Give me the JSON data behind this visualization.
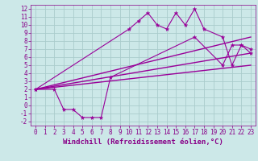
{
  "title": "",
  "xlabel": "Windchill (Refroidissement éolien,°C)",
  "ylabel": "",
  "xlim": [
    -0.5,
    23.5
  ],
  "ylim": [
    -2.5,
    12.5
  ],
  "xtick_labels": [
    "0",
    "1",
    "2",
    "3",
    "4",
    "5",
    "6",
    "7",
    "8",
    "9",
    "10",
    "11",
    "12",
    "13",
    "14",
    "15",
    "16",
    "17",
    "18",
    "19",
    "20",
    "21",
    "22",
    "23"
  ],
  "xtick_vals": [
    0,
    1,
    2,
    3,
    4,
    5,
    6,
    7,
    8,
    9,
    10,
    11,
    12,
    13,
    14,
    15,
    16,
    17,
    18,
    19,
    20,
    21,
    22,
    23
  ],
  "ytick_vals": [
    -2,
    -1,
    0,
    1,
    2,
    3,
    4,
    5,
    6,
    7,
    8,
    9,
    10,
    11,
    12
  ],
  "ytick_labels": [
    "-2",
    "-1",
    "0",
    "1",
    "2",
    "3",
    "4",
    "5",
    "6",
    "7",
    "8",
    "9",
    "10",
    "11",
    "12"
  ],
  "background_color": "#cce8e8",
  "grid_color": "#aacccc",
  "line_color": "#990099",
  "series1_x": [
    0,
    2,
    3,
    4,
    5,
    6,
    7,
    8,
    17,
    20,
    21,
    22,
    23
  ],
  "series1_y": [
    2,
    2,
    -0.5,
    -0.5,
    -1.5,
    -1.5,
    -1.5,
    3.5,
    8.5,
    5.0,
    7.5,
    7.5,
    6.5
  ],
  "series2_x": [
    0,
    10,
    11,
    12,
    13,
    14,
    15,
    16,
    17,
    18,
    20,
    21,
    22,
    23
  ],
  "series2_y": [
    2,
    9.5,
    10.5,
    11.5,
    10.0,
    9.5,
    11.5,
    10.0,
    12.0,
    9.5,
    8.5,
    5.0,
    7.5,
    7.0
  ],
  "line1_x": [
    0,
    23
  ],
  "line1_y": [
    2,
    8.5
  ],
  "line2_x": [
    0,
    23
  ],
  "line2_y": [
    2,
    6.5
  ],
  "line3_x": [
    0,
    23
  ],
  "line3_y": [
    2,
    5.0
  ],
  "font_color": "#880088",
  "tick_fontsize": 5.5,
  "label_fontsize": 6.5
}
